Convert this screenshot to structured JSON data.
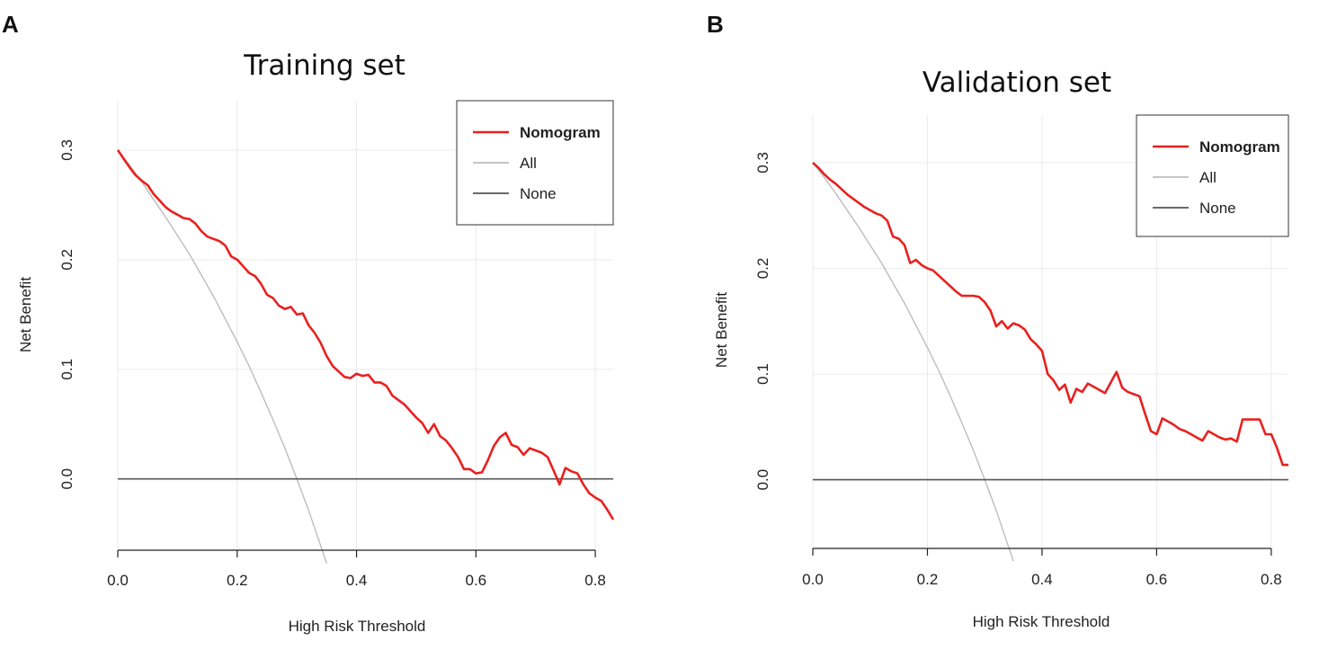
{
  "panels": [
    "A",
    "B"
  ],
  "chart_data": [
    {
      "type": "line",
      "panel": "A",
      "title": "Training set",
      "xlabel": "High Risk Threshold",
      "ylabel": "Net Benefit",
      "xlim": [
        0,
        0.83
      ],
      "ylim": [
        -0.065,
        0.345
      ],
      "xticks": [
        0.0,
        0.2,
        0.4,
        0.6,
        0.8
      ],
      "xtick_labels": [
        "0.0",
        "0.2",
        "0.4",
        "0.6",
        "0.8"
      ],
      "yticks": [
        0.0,
        0.1,
        0.2,
        0.3
      ],
      "ytick_labels": [
        "0.0",
        "0.1",
        "0.2",
        "0.3"
      ],
      "grid": true,
      "legend_position": "top-right",
      "prevalence": 0.3,
      "series": [
        {
          "name": "Nomogram",
          "color": "#e8211f",
          "x": [
            0.0,
            0.01,
            0.02,
            0.03,
            0.04,
            0.05,
            0.06,
            0.07,
            0.08,
            0.09,
            0.1,
            0.11,
            0.12,
            0.13,
            0.14,
            0.15,
            0.16,
            0.17,
            0.18,
            0.19,
            0.2,
            0.21,
            0.22,
            0.23,
            0.24,
            0.25,
            0.26,
            0.27,
            0.28,
            0.29,
            0.3,
            0.31,
            0.32,
            0.33,
            0.34,
            0.35,
            0.36,
            0.37,
            0.38,
            0.39,
            0.4,
            0.41,
            0.42,
            0.43,
            0.44,
            0.45,
            0.46,
            0.47,
            0.48,
            0.49,
            0.5,
            0.51,
            0.52,
            0.53,
            0.54,
            0.55,
            0.56,
            0.57,
            0.58,
            0.59,
            0.6,
            0.61,
            0.62,
            0.63,
            0.64,
            0.65,
            0.66,
            0.67,
            0.68,
            0.69,
            0.7,
            0.71,
            0.72,
            0.73,
            0.74,
            0.75,
            0.76,
            0.77,
            0.78,
            0.79,
            0.8,
            0.81,
            0.82,
            0.83
          ],
          "y": [
            0.3,
            0.292,
            0.284,
            0.277,
            0.272,
            0.268,
            0.26,
            0.254,
            0.248,
            0.244,
            0.241,
            0.238,
            0.237,
            0.233,
            0.226,
            0.221,
            0.219,
            0.217,
            0.213,
            0.203,
            0.2,
            0.194,
            0.188,
            0.185,
            0.178,
            0.168,
            0.165,
            0.158,
            0.155,
            0.157,
            0.15,
            0.151,
            0.14,
            0.133,
            0.124,
            0.112,
            0.103,
            0.098,
            0.093,
            0.092,
            0.096,
            0.094,
            0.095,
            0.088,
            0.088,
            0.085,
            0.076,
            0.072,
            0.068,
            0.062,
            0.056,
            0.051,
            0.042,
            0.05,
            0.039,
            0.035,
            0.028,
            0.02,
            0.009,
            0.009,
            0.005,
            0.006,
            0.017,
            0.03,
            0.038,
            0.042,
            0.031,
            0.029,
            0.022,
            0.028,
            0.026,
            0.024,
            0.02,
            0.008,
            -0.005,
            0.01,
            0.007,
            0.005,
            -0.005,
            -0.013,
            -0.017,
            -0.02,
            -0.028,
            -0.037
          ]
        },
        {
          "name": "All",
          "color": "#bdbdbd",
          "x": [
            0.0,
            0.02,
            0.04,
            0.06,
            0.08,
            0.1,
            0.12,
            0.14,
            0.16,
            0.18,
            0.2,
            0.22,
            0.24,
            0.26,
            0.28,
            0.3,
            0.32,
            0.34,
            0.35
          ],
          "y": [
            0.3,
            0.286,
            0.271,
            0.255,
            0.239,
            0.222,
            0.205,
            0.186,
            0.167,
            0.146,
            0.125,
            0.103,
            0.079,
            0.054,
            0.028,
            0.0,
            -0.029,
            -0.061,
            -0.077
          ]
        },
        {
          "name": "None",
          "color": "#555555",
          "x": [
            0.0,
            0.83
          ],
          "y": [
            0.0,
            0.0
          ]
        }
      ]
    },
    {
      "type": "line",
      "panel": "B",
      "title": "Validation set",
      "xlabel": "High Risk Threshold",
      "ylabel": "Net Benefit",
      "xlim": [
        0,
        0.83
      ],
      "ylim": [
        -0.065,
        0.345
      ],
      "xticks": [
        0.0,
        0.2,
        0.4,
        0.6,
        0.8
      ],
      "xtick_labels": [
        "0.0",
        "0.2",
        "0.4",
        "0.6",
        "0.8"
      ],
      "yticks": [
        0.0,
        0.1,
        0.2,
        0.3
      ],
      "ytick_labels": [
        "0.0",
        "0.1",
        "0.2",
        "0.3"
      ],
      "grid": true,
      "legend_position": "top-right",
      "prevalence": 0.3,
      "series": [
        {
          "name": "Nomogram",
          "color": "#e8211f",
          "x": [
            0.0,
            0.01,
            0.02,
            0.03,
            0.04,
            0.05,
            0.06,
            0.07,
            0.08,
            0.09,
            0.1,
            0.11,
            0.12,
            0.13,
            0.14,
            0.15,
            0.16,
            0.17,
            0.18,
            0.19,
            0.2,
            0.21,
            0.22,
            0.23,
            0.24,
            0.25,
            0.26,
            0.27,
            0.28,
            0.29,
            0.3,
            0.31,
            0.32,
            0.33,
            0.34,
            0.35,
            0.36,
            0.37,
            0.38,
            0.39,
            0.4,
            0.41,
            0.42,
            0.43,
            0.44,
            0.45,
            0.46,
            0.47,
            0.48,
            0.49,
            0.5,
            0.51,
            0.52,
            0.53,
            0.54,
            0.55,
            0.56,
            0.57,
            0.58,
            0.59,
            0.6,
            0.61,
            0.62,
            0.63,
            0.64,
            0.65,
            0.66,
            0.67,
            0.68,
            0.69,
            0.7,
            0.71,
            0.72,
            0.73,
            0.74,
            0.75,
            0.76,
            0.77,
            0.78,
            0.79,
            0.8,
            0.81,
            0.82,
            0.83
          ],
          "y": [
            0.3,
            0.295,
            0.289,
            0.284,
            0.28,
            0.275,
            0.27,
            0.266,
            0.262,
            0.258,
            0.255,
            0.252,
            0.25,
            0.245,
            0.23,
            0.228,
            0.222,
            0.205,
            0.208,
            0.203,
            0.2,
            0.198,
            0.193,
            0.188,
            0.183,
            0.178,
            0.174,
            0.174,
            0.174,
            0.173,
            0.168,
            0.16,
            0.145,
            0.15,
            0.143,
            0.148,
            0.146,
            0.142,
            0.133,
            0.128,
            0.122,
            0.1,
            0.094,
            0.085,
            0.09,
            0.073,
            0.086,
            0.083,
            0.091,
            0.088,
            0.085,
            0.082,
            0.092,
            0.102,
            0.087,
            0.083,
            0.081,
            0.079,
            0.062,
            0.046,
            0.043,
            0.058,
            0.055,
            0.052,
            0.048,
            0.046,
            0.043,
            0.04,
            0.037,
            0.046,
            0.043,
            0.04,
            0.038,
            0.039,
            0.036,
            0.057,
            0.057,
            0.057,
            0.057,
            0.043,
            0.043,
            0.03,
            0.014,
            0.014
          ]
        },
        {
          "name": "All",
          "color": "#bdbdbd",
          "x": [
            0.0,
            0.02,
            0.04,
            0.06,
            0.08,
            0.1,
            0.12,
            0.14,
            0.16,
            0.18,
            0.2,
            0.22,
            0.24,
            0.26,
            0.28,
            0.3,
            0.32,
            0.34,
            0.35
          ],
          "y": [
            0.3,
            0.286,
            0.271,
            0.255,
            0.239,
            0.222,
            0.205,
            0.186,
            0.167,
            0.146,
            0.125,
            0.103,
            0.079,
            0.054,
            0.028,
            0.0,
            -0.029,
            -0.061,
            -0.077
          ]
        },
        {
          "name": "None",
          "color": "#555555",
          "x": [
            0.0,
            0.83
          ],
          "y": [
            0.0,
            0.0
          ]
        }
      ]
    }
  ]
}
